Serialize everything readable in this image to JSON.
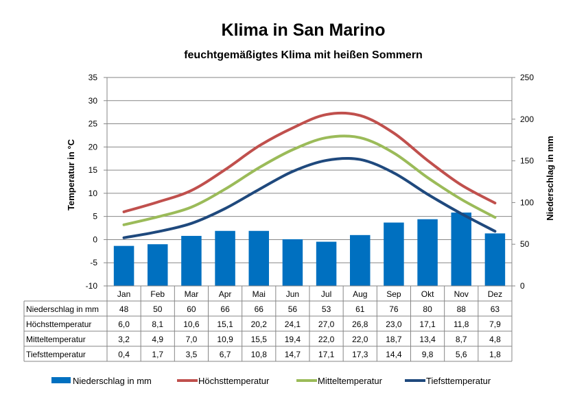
{
  "chart_data": {
    "type": "bar+line",
    "title": "Klima in San Marino",
    "subtitle": "feuchtgemäßigtes Klima mit heißen Sommern",
    "ylabel_left": "Temperatur  in  °C",
    "ylabel_right": "Niederschlag  in  mm",
    "ylim_left": [
      -10,
      35
    ],
    "yticks_left": [
      -10,
      -5,
      0,
      5,
      10,
      15,
      20,
      25,
      30,
      35
    ],
    "ylim_right": [
      0,
      250
    ],
    "yticks_right": [
      0,
      50,
      100,
      150,
      200,
      250
    ],
    "grid": "horizontal",
    "legend_position": "bottom",
    "categories": [
      "Jan",
      "Feb",
      "Mar",
      "Apr",
      "Mai",
      "Jun",
      "Jul",
      "Aug",
      "Sep",
      "Okt",
      "Nov",
      "Dez"
    ],
    "series": [
      {
        "name": "Niederschlag in mm",
        "type": "bar",
        "axis": "right",
        "color": "#0070c0",
        "values": [
          48,
          50,
          60,
          66,
          66,
          56,
          53,
          61,
          76,
          80,
          88,
          63
        ],
        "display": [
          "48",
          "50",
          "60",
          "66",
          "66",
          "56",
          "53",
          "61",
          "76",
          "80",
          "88",
          "63"
        ]
      },
      {
        "name": "Höchsttemperatur",
        "type": "line",
        "axis": "left",
        "color": "#c0504d",
        "values": [
          6.0,
          8.1,
          10.6,
          15.1,
          20.2,
          24.1,
          27.0,
          26.8,
          23.0,
          17.1,
          11.8,
          7.9
        ],
        "display": [
          "6,0",
          "8,1",
          "10,6",
          "15,1",
          "20,2",
          "24,1",
          "27,0",
          "26,8",
          "23,0",
          "17,1",
          "11,8",
          "7,9"
        ]
      },
      {
        "name": "Mitteltemperatur",
        "type": "line",
        "axis": "left",
        "color": "#9bbb59",
        "values": [
          3.2,
          4.9,
          7.0,
          10.9,
          15.5,
          19.4,
          22.0,
          22.0,
          18.7,
          13.4,
          8.7,
          4.8
        ],
        "display": [
          "3,2",
          "4,9",
          "7,0",
          "10,9",
          "15,5",
          "19,4",
          "22,0",
          "22,0",
          "18,7",
          "13,4",
          "8,7",
          "4,8"
        ]
      },
      {
        "name": "Tiefsttemperatur",
        "type": "line",
        "axis": "left",
        "color": "#1f497d",
        "values": [
          0.4,
          1.7,
          3.5,
          6.7,
          10.8,
          14.7,
          17.1,
          17.3,
          14.4,
          9.8,
          5.6,
          1.8
        ],
        "display": [
          "0,4",
          "1,7",
          "3,5",
          "6,7",
          "10,8",
          "14,7",
          "17,1",
          "17,3",
          "14,4",
          "9,8",
          "5,6",
          "1,8"
        ]
      }
    ]
  }
}
